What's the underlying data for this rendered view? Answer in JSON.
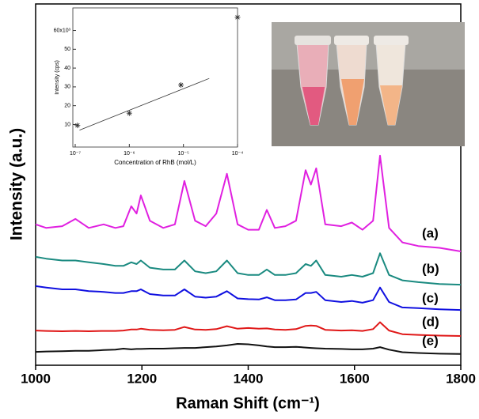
{
  "chart_data": [
    {
      "type": "line",
      "x": [
        1000,
        1020,
        1050,
        1075,
        1100,
        1128,
        1150,
        1165,
        1180,
        1190,
        1198,
        1215,
        1240,
        1262,
        1280,
        1300,
        1320,
        1340,
        1360,
        1380,
        1400,
        1420,
        1435,
        1450,
        1470,
        1490,
        1508,
        1518,
        1528,
        1545,
        1575,
        1595,
        1615,
        1635,
        1648,
        1665,
        1690,
        1720,
        1760,
        1800
      ],
      "xlim": [
        1000,
        1800
      ],
      "xticks": [
        1000,
        1200,
        1400,
        1600,
        1800
      ],
      "ylim": [
        0,
        100
      ],
      "xlabel": "Raman Shift (cm⁻¹)",
      "ylabel": "Intensity (a.u.)",
      "series": [
        {
          "name": "(a)",
          "color": "#e020e0",
          "values": [
            39,
            38,
            38.5,
            40.5,
            38,
            39,
            38,
            38.5,
            44,
            42,
            47,
            40,
            38,
            39,
            51,
            40,
            38.5,
            42,
            53,
            39,
            37.5,
            37.5,
            43,
            38,
            38.5,
            40,
            54,
            50,
            54.5,
            39,
            38.5,
            39.5,
            37.5,
            40,
            58,
            38,
            34,
            33,
            32.5,
            31.5
          ]
        },
        {
          "name": "(b)",
          "color": "#1a8a80",
          "values": [
            30,
            29.5,
            29,
            29,
            28.5,
            28,
            27.5,
            27.5,
            28.5,
            28,
            29,
            27,
            26.5,
            26.5,
            29,
            26,
            25.5,
            26,
            29,
            25.5,
            25,
            25,
            26.5,
            25,
            25,
            25.5,
            28,
            27.5,
            29,
            25,
            24.5,
            25,
            24.5,
            25.5,
            31,
            25,
            23.5,
            23,
            22.5,
            22.3
          ]
        },
        {
          "name": "(c)",
          "color": "#1010e0",
          "values": [
            21.9,
            21.5,
            21,
            21,
            20.5,
            20.3,
            20,
            20,
            20.5,
            20.5,
            21,
            19.7,
            19.3,
            19.3,
            21,
            19,
            18.7,
            19,
            20.5,
            18.5,
            18.3,
            18.2,
            18.8,
            18,
            18,
            18.2,
            20,
            20,
            20.3,
            18,
            17.5,
            17.8,
            17.3,
            18,
            21.5,
            17.5,
            16,
            15.8,
            15.5,
            15.3
          ]
        },
        {
          "name": "(d)",
          "color": "#e01818",
          "values": [
            9.6,
            9.5,
            9.4,
            9.5,
            9.4,
            9.5,
            9.5,
            9.6,
            9.9,
            9.9,
            10.1,
            9.8,
            9.7,
            9.8,
            10.6,
            9.9,
            9.8,
            10,
            10.8,
            10.1,
            10.3,
            10.1,
            10.2,
            9.9,
            9.8,
            10,
            10.9,
            11,
            10.9,
            9.8,
            9.6,
            9.7,
            9.5,
            10,
            11.9,
            9.6,
            8.6,
            8.4,
            8.2,
            8.1
          ]
        },
        {
          "name": "(e)",
          "color": "#111111",
          "values": [
            3.7,
            3.8,
            3.9,
            4,
            4,
            4.2,
            4.3,
            4.6,
            4.4,
            4.5,
            4.5,
            4.6,
            4.6,
            4.7,
            4.8,
            4.8,
            5,
            5.2,
            5.5,
            5.9,
            5.8,
            5.5,
            5.2,
            5,
            5,
            5.1,
            4.9,
            4.8,
            4.7,
            4.6,
            4.5,
            4.4,
            4.4,
            4.6,
            5,
            4.3,
            3.6,
            3.4,
            3.2,
            3.1
          ]
        }
      ]
    },
    {
      "type": "scatter",
      "log_x": true,
      "xlabel": "Concentration of RhB (mol/L)",
      "ylabel": "Intensity (cps)",
      "xlim": [
        1e-07,
        0.0001
      ],
      "xticks": [
        {
          "value": 1e-07,
          "label": "10⁻⁷"
        },
        {
          "value": 1e-06,
          "label": "10⁻⁶"
        },
        {
          "value": 1e-05,
          "label": "10⁻⁵"
        },
        {
          "value": 0.0001,
          "label": "10⁻⁴"
        }
      ],
      "ylim": [
        -2,
        72
      ],
      "yticks": [
        10,
        20,
        30,
        40,
        50,
        {
          "value": 60,
          "label": "60x10³"
        }
      ],
      "x": [
        1.1e-07,
        1e-06,
        9e-06,
        0.0001
      ],
      "values": [
        9.5,
        16,
        31,
        67
      ],
      "color": "#333333",
      "fit": {
        "x": [
          1.2e-07,
          3e-05
        ],
        "values": [
          7,
          34.5
        ]
      }
    }
  ]
}
